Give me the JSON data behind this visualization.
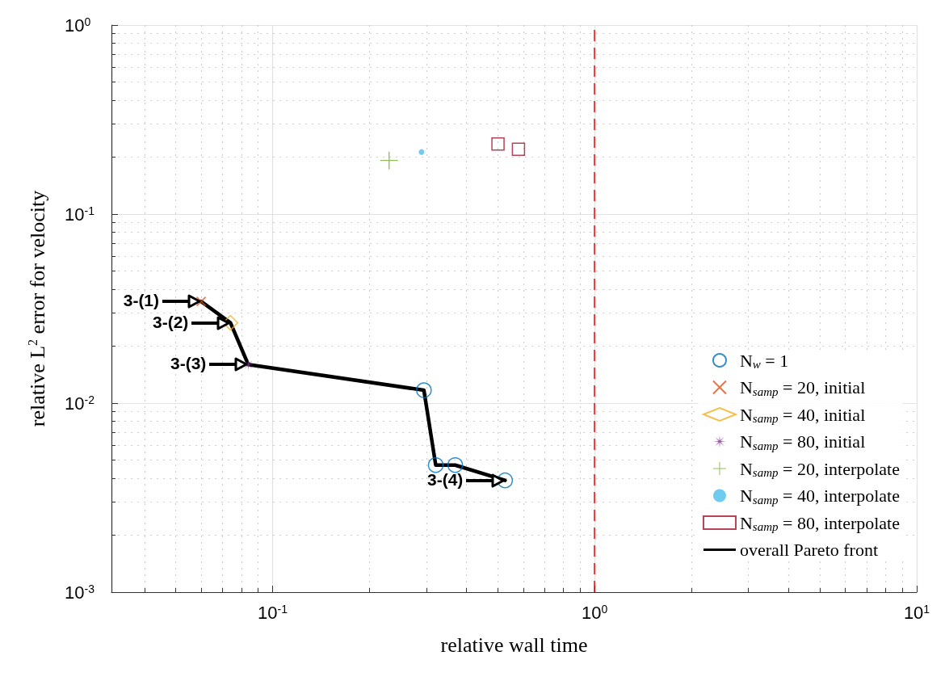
{
  "chart_data": {
    "type": "scatter",
    "xlabel": "relative wall time",
    "ylabel": "relative L$^{2}$ error for velocity",
    "xlim": [
      0.0316,
      10
    ],
    "ylim": [
      0.001,
      1
    ],
    "log": "xy",
    "grid": true,
    "legend": "right",
    "xticks": [
      {
        "value": 0.1,
        "label": "10$^{-1}$"
      },
      {
        "value": 1,
        "label": "10$^{0}$"
      },
      {
        "value": 10,
        "label": "10$^{1}$"
      }
    ],
    "yticks": [
      {
        "value": 0.001,
        "label": "10$^{-3}$"
      },
      {
        "value": 0.01,
        "label": "10$^{-2}$"
      },
      {
        "value": 0.1,
        "label": "10$^{-1}$"
      },
      {
        "value": 1,
        "label": "10$^{0}$"
      }
    ],
    "series": [
      {
        "name": "N$_{w}$ = 1",
        "color": "#0072bd",
        "marker": "circle",
        "x": [
          0.295,
          0.321,
          0.369,
          0.527
        ],
        "values": [
          0.0117,
          0.0047,
          0.0047,
          0.0039
        ]
      },
      {
        "name": "N$_{samp}$ = 20, initial",
        "color": "#d95319",
        "marker": "cross",
        "x": [
          0.06
        ],
        "values": [
          0.0345
        ]
      },
      {
        "name": "N$_{samp}$ = 40, initial",
        "color": "#edb120",
        "marker": "diamond",
        "x": [
          0.074
        ],
        "values": [
          0.0266
        ]
      },
      {
        "name": "N$_{samp}$ = 80, initial",
        "color": "#7e2f8e",
        "marker": "star",
        "x": [
          0.084
        ],
        "values": [
          0.016
        ]
      },
      {
        "name": "N$_{samp}$ = 20, interpolate",
        "color": "#77ac30",
        "marker": "plus",
        "x": [
          0.23
        ],
        "values": [
          0.192
        ]
      },
      {
        "name": "N$_{samp}$ = 40, interpolate",
        "color": "#4dbeee",
        "marker": "dot",
        "x": [
          0.29
        ],
        "values": [
          0.213
        ]
      },
      {
        "name": "N$_{samp}$ = 80, interpolate",
        "color": "#a2142f",
        "marker": "square",
        "x": [
          0.501,
          0.58
        ],
        "values": [
          0.235,
          0.22
        ]
      },
      {
        "name": "overall Pareto front",
        "type": "line",
        "color": "#000000",
        "marker": "none",
        "line_style": "solid",
        "x": [
          0.06,
          0.074,
          0.084,
          0.295,
          0.321,
          0.369,
          0.527
        ],
        "values": [
          0.0345,
          0.0266,
          0.016,
          0.0117,
          0.0047,
          0.0047,
          0.0039
        ]
      }
    ],
    "ref_lines": [
      {
        "axis": "x",
        "value": 1,
        "label": null,
        "color": "#ff0000",
        "line_style": "dashed"
      }
    ],
    "annotations": [
      {
        "text": "3-(1)",
        "x": 0.06,
        "y": 0.0345
      },
      {
        "text": "3-(2)",
        "x": 0.074,
        "y": 0.0266
      },
      {
        "text": "3-(3)",
        "x": 0.084,
        "y": 0.016
      },
      {
        "text": "3-(4)",
        "x": 0.527,
        "y": 0.0039
      }
    ]
  }
}
